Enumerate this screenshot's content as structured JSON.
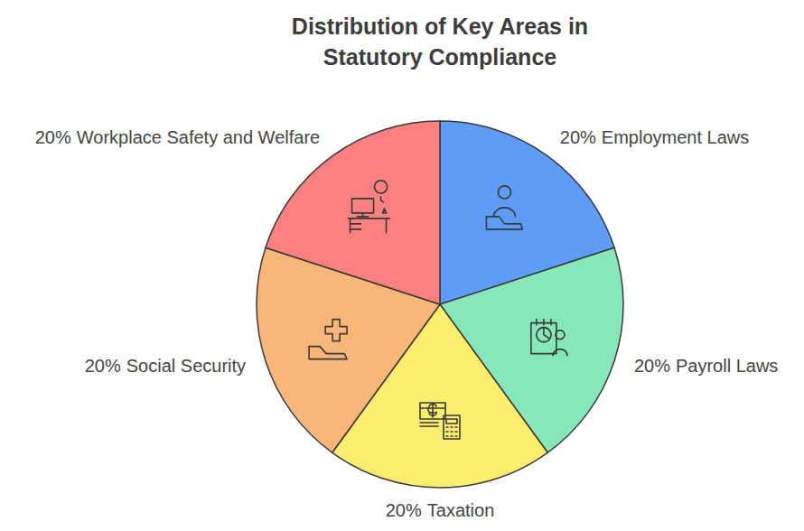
{
  "chart_data": {
    "type": "pie",
    "title": "Distribution of Key Areas in Statutory Compliance",
    "categories": [
      "Employment Laws",
      "Payroll Laws",
      "Taxation",
      "Social Security",
      "Workplace Safety and Welfare"
    ],
    "values": [
      20,
      20,
      20,
      20,
      20
    ],
    "value_labels": [
      "20%",
      "20%",
      "20%",
      "20%",
      "20%"
    ],
    "colors": [
      "#5e9df7",
      "#86e8b8",
      "#fded6e",
      "#f9b679",
      "#fb8181"
    ],
    "data_labels": true
  }
}
